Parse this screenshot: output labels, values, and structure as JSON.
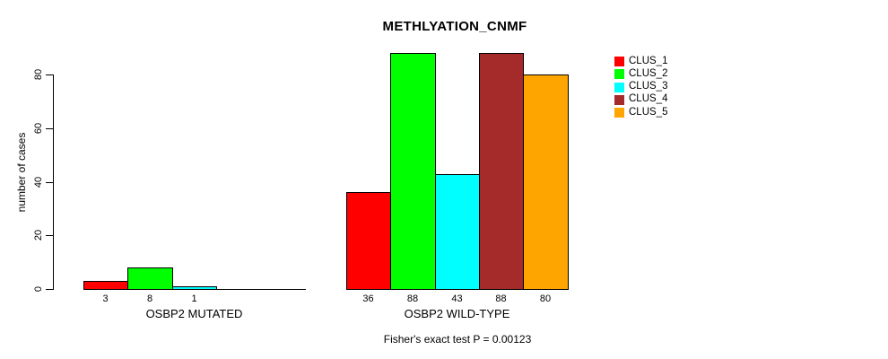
{
  "chart_data": {
    "type": "bar",
    "title": "METHLYATION_CNMF",
    "ylabel": "number of cases",
    "xlabel": "",
    "footer": "Fisher's exact test P = 0.00123",
    "ylim": [
      0,
      88
    ],
    "yticks": [
      0,
      20,
      40,
      60,
      80
    ],
    "grid": false,
    "bar_border_color": "#000000",
    "series": [
      "CLUS_1",
      "CLUS_2",
      "CLUS_3",
      "CLUS_4",
      "CLUS_5"
    ],
    "legend": {
      "position": "right-outside",
      "entries": [
        {
          "label": "CLUS_1",
          "color": "#ff0000"
        },
        {
          "label": "CLUS_2",
          "color": "#00ff00"
        },
        {
          "label": "CLUS_3",
          "color": "#00ffff"
        },
        {
          "label": "CLUS_4",
          "color": "#a52a2a"
        },
        {
          "label": "CLUS_5",
          "color": "#ffa500"
        }
      ]
    },
    "groups": [
      {
        "label": "OSBP2 MUTATED",
        "values": [
          3,
          8,
          1,
          0,
          0
        ],
        "value_labels": [
          "3",
          "8",
          "1",
          "",
          ""
        ]
      },
      {
        "label": "OSBP2 WILD-TYPE",
        "values": [
          36,
          88,
          43,
          88,
          80
        ],
        "value_labels": [
          "36",
          "88",
          "43",
          "88",
          "80"
        ]
      }
    ]
  }
}
